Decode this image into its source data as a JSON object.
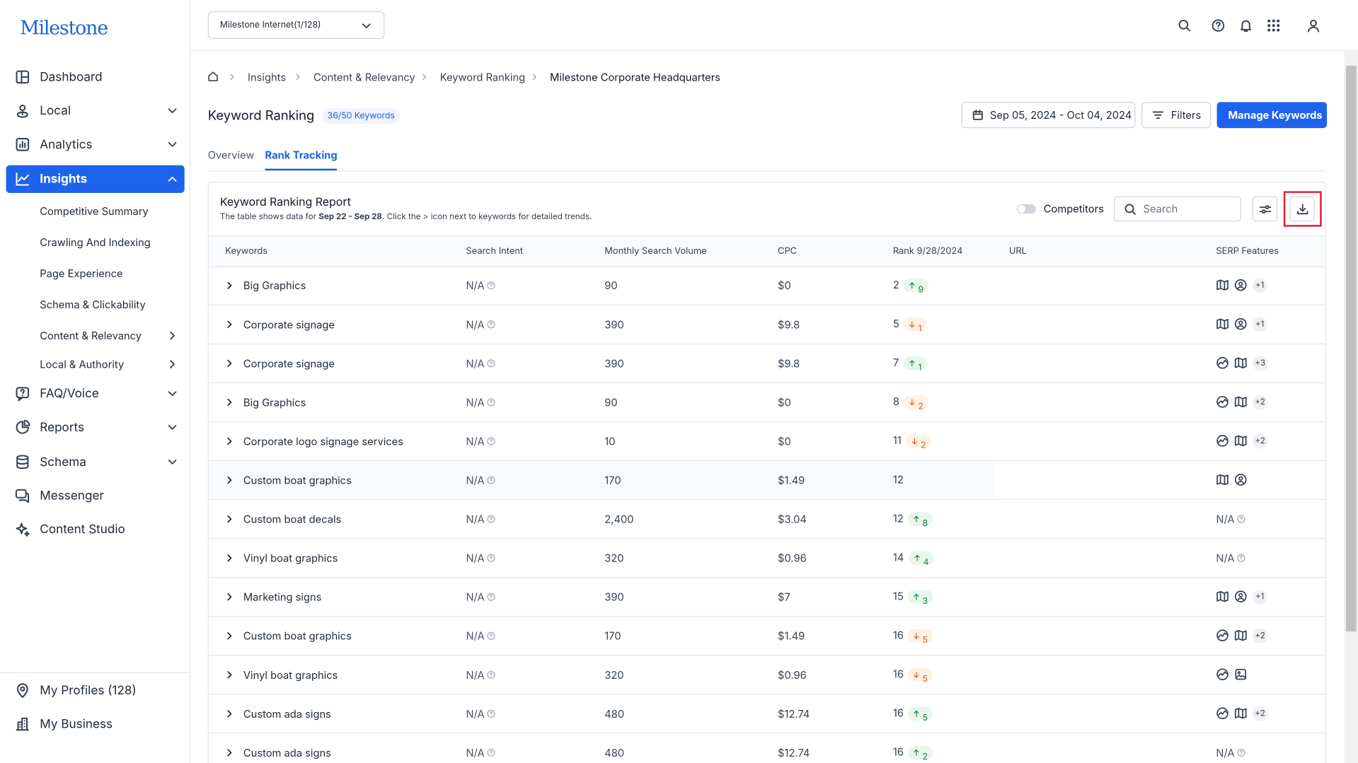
{
  "brand": "Milestone",
  "sidebar": {
    "nav": [
      "Dashboard",
      "Local",
      "Analytics",
      "Insights"
    ],
    "subnav": [
      "Competitive Summary",
      "Crawling And Indexing",
      "Page Experience",
      "Schema & Clickability",
      "Content & Relevancy",
      "Local & Authority"
    ],
    "nav_after": [
      "FAQ/Voice",
      "Reports",
      "Schema",
      "Messenger",
      "Content Studio"
    ],
    "footer": [
      "My Profiles (128)",
      "My Business"
    ]
  },
  "header": {
    "account": "Milestone Internet(1/128)"
  },
  "breadcrumb": [
    "Insights",
    "Content & Relevancy",
    "Keyword Ranking",
    "Milestone Corporate Headquarters"
  ],
  "page": {
    "title": "Keyword Ranking",
    "badge": "36/50 Keywords",
    "date_range": "Sep 05, 2024 - Oct 04, 2024",
    "filters": "Filters",
    "manage": "Manage Keywords",
    "tabs": [
      "Overview",
      "Rank Tracking"
    ],
    "active_tab": 1
  },
  "report": {
    "title": "Keyword Ranking Report",
    "desc_before": "The table shows data for ",
    "desc_range": "Sep 22 - Sep 28",
    "desc_after": ". Click the > icon next to keywords for detailed trends.",
    "competitors": "Competitors",
    "search_placeholder": "Search"
  },
  "table": {
    "columns": [
      "Keywords",
      "Search Intent",
      "Monthly Search Volume",
      "CPC",
      "Rank 9/28/2024",
      "URL",
      "SERP Features"
    ],
    "hovered_row": 5,
    "rows": [
      {
        "keyword": "Big Graphics",
        "intent": "N/A",
        "volume": "90",
        "cpc": "$0",
        "rank": "2",
        "change": {
          "direction": "up",
          "value": "9"
        },
        "serp": {
          "icons": [
            "map",
            "person"
          ],
          "more": "+1"
        }
      },
      {
        "keyword": "Corporate signage",
        "intent": "N/A",
        "volume": "390",
        "cpc": "$9.8",
        "rank": "5",
        "change": {
          "direction": "down",
          "value": "1"
        },
        "serp": {
          "icons": [
            "map",
            "person"
          ],
          "more": "+1"
        }
      },
      {
        "keyword": "Corporate signage",
        "intent": "N/A",
        "volume": "390",
        "cpc": "$9.8",
        "rank": "7",
        "change": {
          "direction": "up",
          "value": "1"
        },
        "serp": {
          "icons": [
            "chart",
            "map"
          ],
          "more": "+3"
        }
      },
      {
        "keyword": "Big Graphics",
        "intent": "N/A",
        "volume": "90",
        "cpc": "$0",
        "rank": "8",
        "change": {
          "direction": "down",
          "value": "2"
        },
        "serp": {
          "icons": [
            "chart",
            "map"
          ],
          "more": "+2"
        }
      },
      {
        "keyword": "Corporate logo signage services",
        "intent": "N/A",
        "volume": "10",
        "cpc": "$0",
        "rank": "11",
        "change": {
          "direction": "down",
          "value": "2"
        },
        "serp": {
          "icons": [
            "chart",
            "map"
          ],
          "more": "+2"
        }
      },
      {
        "keyword": "Custom boat graphics",
        "intent": "N/A",
        "volume": "170",
        "cpc": "$1.49",
        "rank": "12",
        "serp": {
          "icons": [
            "map",
            "person"
          ]
        }
      },
      {
        "keyword": "Custom boat decals",
        "intent": "N/A",
        "volume": "2,400",
        "cpc": "$3.04",
        "rank": "12",
        "change": {
          "direction": "up",
          "value": "8"
        },
        "serp": {
          "text": "N/A"
        }
      },
      {
        "keyword": "Vinyl boat graphics",
        "intent": "N/A",
        "volume": "320",
        "cpc": "$0.96",
        "rank": "14",
        "change": {
          "direction": "up",
          "value": "4"
        },
        "serp": {
          "text": "N/A"
        }
      },
      {
        "keyword": "Marketing signs",
        "intent": "N/A",
        "volume": "390",
        "cpc": "$7",
        "rank": "15",
        "change": {
          "direction": "up",
          "value": "3"
        },
        "serp": {
          "icons": [
            "map",
            "person"
          ],
          "more": "+1"
        }
      },
      {
        "keyword": "Custom boat graphics",
        "intent": "N/A",
        "volume": "170",
        "cpc": "$1.49",
        "rank": "16",
        "change": {
          "direction": "down",
          "value": "5"
        },
        "serp": {
          "icons": [
            "chart",
            "map"
          ],
          "more": "+2"
        }
      },
      {
        "keyword": "Vinyl boat graphics",
        "intent": "N/A",
        "volume": "320",
        "cpc": "$0.96",
        "rank": "16",
        "change": {
          "direction": "down",
          "value": "5"
        },
        "serp": {
          "icons": [
            "chart",
            "image"
          ]
        }
      },
      {
        "keyword": "Custom ada signs",
        "intent": "N/A",
        "volume": "480",
        "cpc": "$12.74",
        "rank": "16",
        "change": {
          "direction": "up",
          "value": "5"
        },
        "serp": {
          "icons": [
            "chart",
            "map"
          ],
          "more": "+2"
        }
      },
      {
        "keyword": "Custom ada signs",
        "intent": "N/A",
        "volume": "480",
        "cpc": "$12.74",
        "rank": "16",
        "change": {
          "direction": "up",
          "value": "2"
        },
        "serp": {
          "text": "N/A"
        }
      }
    ]
  }
}
